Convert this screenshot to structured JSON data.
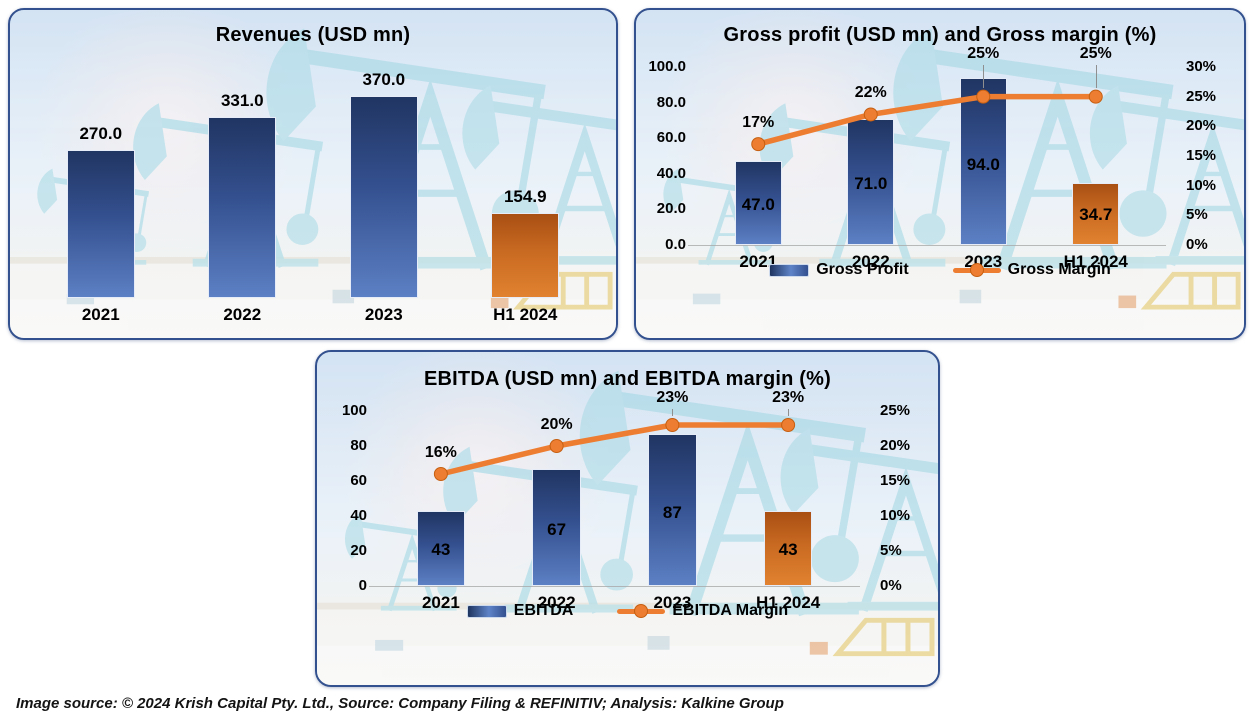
{
  "caption": "Image source: © 2024 Krish Capital Pty. Ltd., Source: Company Filing & REFINITIV; Analysis: Kalkine Group",
  "colors": {
    "panel_border": "#33518e",
    "bar_blue_top": "#203562",
    "bar_blue_bottom": "#5c80c4",
    "bar_orange_top": "#a84f13",
    "bar_orange_bottom": "#e0822f",
    "line_orange": "#ED7D31",
    "marker_stroke": "#c55f11",
    "label_text": "#000000"
  },
  "chart_data": [
    {
      "id": "revenues",
      "type": "bar",
      "title": "Revenues (USD mn)",
      "categories": [
        "2021",
        "2022",
        "2023",
        "H1 2024"
      ],
      "values": [
        270.0,
        331.0,
        370.0,
        154.9
      ],
      "value_labels": [
        "270.0",
        "331.0",
        "370.0",
        "154.9"
      ],
      "bar_colors": [
        "blue",
        "blue",
        "blue",
        "orange"
      ],
      "ylim": [
        0,
        430
      ],
      "value_label_position": "above",
      "grid": "off",
      "legend": null
    },
    {
      "id": "gross",
      "type": "bar+line",
      "title": "Gross profit (USD mn) and Gross margin (%)",
      "categories": [
        "2021",
        "2022",
        "2023",
        "H1 2024"
      ],
      "bar_colors": [
        "blue",
        "blue",
        "blue",
        "orange"
      ],
      "series": [
        {
          "name": "Gross Profit",
          "type": "bar",
          "axis": "left",
          "values": [
            47.0,
            71.0,
            94.0,
            34.7
          ],
          "labels": [
            "47.0",
            "71.0",
            "94.0",
            "34.7"
          ]
        },
        {
          "name": "Gross Margin",
          "type": "line",
          "axis": "right",
          "values": [
            17,
            22,
            25,
            25
          ],
          "labels": [
            "17%",
            "22%",
            "25%",
            "25%"
          ],
          "label_lift": [
            false,
            false,
            true,
            true
          ]
        }
      ],
      "left_axis": {
        "max": 100,
        "ticks": [
          "100.0",
          "80.0",
          "60.0",
          "40.0",
          "20.0",
          "0.0"
        ]
      },
      "right_axis": {
        "max": 30,
        "ticks": [
          "30%",
          "25%",
          "20%",
          "15%",
          "10%",
          "5%",
          "0%"
        ]
      },
      "value_label_position": "inside",
      "grid": "off",
      "legend": [
        {
          "label": "Gross Profit",
          "swatch": "bar"
        },
        {
          "label": "Gross Margin",
          "swatch": "line"
        }
      ]
    },
    {
      "id": "ebitda",
      "type": "bar+line",
      "title": "EBITDA (USD mn) and EBITDA margin (%)",
      "categories": [
        "2021",
        "2022",
        "2023",
        "H1 2024"
      ],
      "bar_colors": [
        "blue",
        "blue",
        "blue",
        "orange"
      ],
      "series": [
        {
          "name": "EBITDA",
          "type": "bar",
          "axis": "left",
          "values": [
            43,
            67,
            87,
            43
          ],
          "labels": [
            "43",
            "67",
            "87",
            "43"
          ]
        },
        {
          "name": "EBITDA Margin",
          "type": "line",
          "axis": "right",
          "values": [
            16,
            20,
            23,
            23
          ],
          "labels": [
            "16%",
            "20%",
            "23%",
            "23%"
          ],
          "label_lift": [
            false,
            false,
            true,
            true
          ]
        }
      ],
      "left_axis": {
        "max": 100,
        "ticks": [
          "100",
          "80",
          "60",
          "40",
          "20",
          "0"
        ]
      },
      "right_axis": {
        "max": 25,
        "ticks": [
          "25%",
          "20%",
          "15%",
          "10%",
          "5%",
          "0%"
        ]
      },
      "value_label_position": "inside",
      "grid": "off",
      "legend": [
        {
          "label": "EBITDA",
          "swatch": "bar"
        },
        {
          "label": "EBITDA Margin",
          "swatch": "line"
        }
      ]
    }
  ]
}
